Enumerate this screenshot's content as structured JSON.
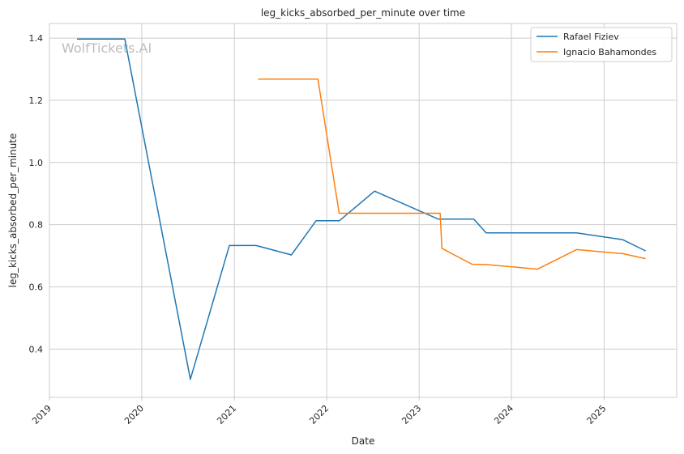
{
  "chart_data": {
    "type": "line",
    "title": "leg_kicks_absorbed_per_minute over time",
    "xlabel": "Date",
    "ylabel": "leg_kicks_absorbed_per_minute",
    "watermark": "WolfTickets.AI",
    "xlim": [
      "2019-01-01",
      "2025-10-15"
    ],
    "ylim": [
      0.245,
      1.447
    ],
    "x_ticks": [
      {
        "value": "2019-01-01",
        "label": "2019"
      },
      {
        "value": "2020-01-01",
        "label": "2020"
      },
      {
        "value": "2021-01-01",
        "label": "2021"
      },
      {
        "value": "2022-01-01",
        "label": "2022"
      },
      {
        "value": "2023-01-01",
        "label": "2023"
      },
      {
        "value": "2024-01-01",
        "label": "2024"
      },
      {
        "value": "2025-01-01",
        "label": "2025"
      }
    ],
    "y_ticks": [
      {
        "value": 0.4,
        "label": "0.4"
      },
      {
        "value": 0.6,
        "label": "0.6"
      },
      {
        "value": 0.8,
        "label": "0.8"
      },
      {
        "value": 1.0,
        "label": "1.0"
      },
      {
        "value": 1.2,
        "label": "1.2"
      },
      {
        "value": 1.4,
        "label": "1.4"
      }
    ],
    "grid": true,
    "legend_position": "top-right",
    "series": [
      {
        "name": "Rafael Fiziev",
        "color": "#1f77b4",
        "points": [
          [
            "2019-04-20",
            1.397
          ],
          [
            "2019-10-26",
            1.397
          ],
          [
            "2020-07-11",
            0.303
          ],
          [
            "2020-12-12",
            0.733
          ],
          [
            "2021-03-28",
            0.733
          ],
          [
            "2021-08-14",
            0.703
          ],
          [
            "2021-11-20",
            0.813
          ],
          [
            "2022-02-20",
            0.813
          ],
          [
            "2022-07-09",
            0.908
          ],
          [
            "2023-03-18",
            0.818
          ],
          [
            "2023-08-05",
            0.818
          ],
          [
            "2023-09-23",
            0.774
          ],
          [
            "2024-09-14",
            0.774
          ],
          [
            "2025-03-15",
            0.752
          ],
          [
            "2025-06-14",
            0.716
          ]
        ]
      },
      {
        "name": "Ignacio Bahamondes",
        "color": "#ff7f0e",
        "points": [
          [
            "2021-04-05",
            1.268
          ],
          [
            "2021-11-27",
            1.268
          ],
          [
            "2022-02-19",
            0.837
          ],
          [
            "2023-03-25",
            0.837
          ],
          [
            "2023-04-01",
            0.724
          ],
          [
            "2023-07-29",
            0.673
          ],
          [
            "2023-09-23",
            0.672
          ],
          [
            "2024-04-13",
            0.657
          ],
          [
            "2024-09-14",
            0.72
          ],
          [
            "2025-03-15",
            0.707
          ],
          [
            "2025-06-14",
            0.691
          ]
        ]
      }
    ]
  }
}
